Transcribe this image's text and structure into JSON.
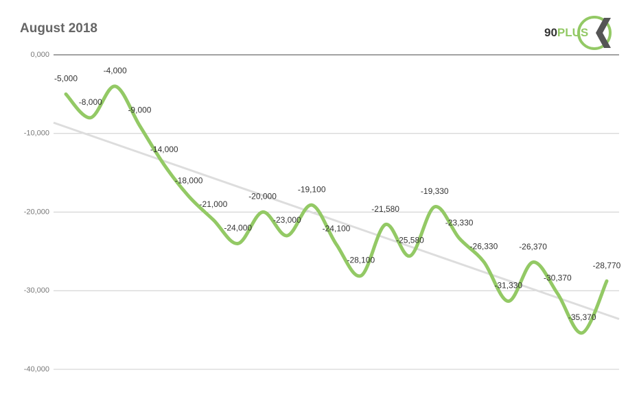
{
  "chart_data": {
    "type": "line",
    "title": "August 2018",
    "brand": [
      "90",
      "PLUS"
    ],
    "categories": [
      null,
      null,
      null,
      null,
      null,
      null,
      null,
      null,
      null,
      null,
      null,
      null,
      null,
      null,
      null,
      null,
      null,
      null,
      null,
      null,
      null,
      null,
      null
    ],
    "values": [
      -5000,
      -8000,
      -4000,
      -9000,
      -14000,
      -18000,
      -21000,
      -24000,
      -20000,
      -23000,
      -19100,
      -24100,
      -28100,
      -21580,
      -25580,
      -19330,
      -23330,
      -26330,
      -31330,
      -26370,
      -30370,
      -35370,
      -28770
    ],
    "value_labels": [
      "-5,000",
      "-8,000",
      "-4,000",
      "-9,000",
      "-14,000",
      "-18,000",
      "-21,000",
      "-24,000",
      "-20,000",
      "-23,000",
      "-19,100",
      "-24,100",
      "-28,100",
      "-21,580",
      "-25,580",
      "-19,330",
      "-23,330",
      "-26,330",
      "-31,330",
      "-26,370",
      "-30,370",
      "-35,370",
      "-28,770"
    ],
    "color": "#93c965",
    "trendline": true,
    "trendline_color": "#dddddd",
    "ylim": [
      -40000,
      0
    ],
    "yticks": [
      {
        "value": 0,
        "label": "0,000"
      },
      {
        "value": -10000,
        "label": "-10,000"
      },
      {
        "value": -20000,
        "label": "-20,000"
      },
      {
        "value": -30000,
        "label": "-30,000"
      },
      {
        "value": -40000,
        "label": "-40,000"
      }
    ],
    "grid": true
  }
}
